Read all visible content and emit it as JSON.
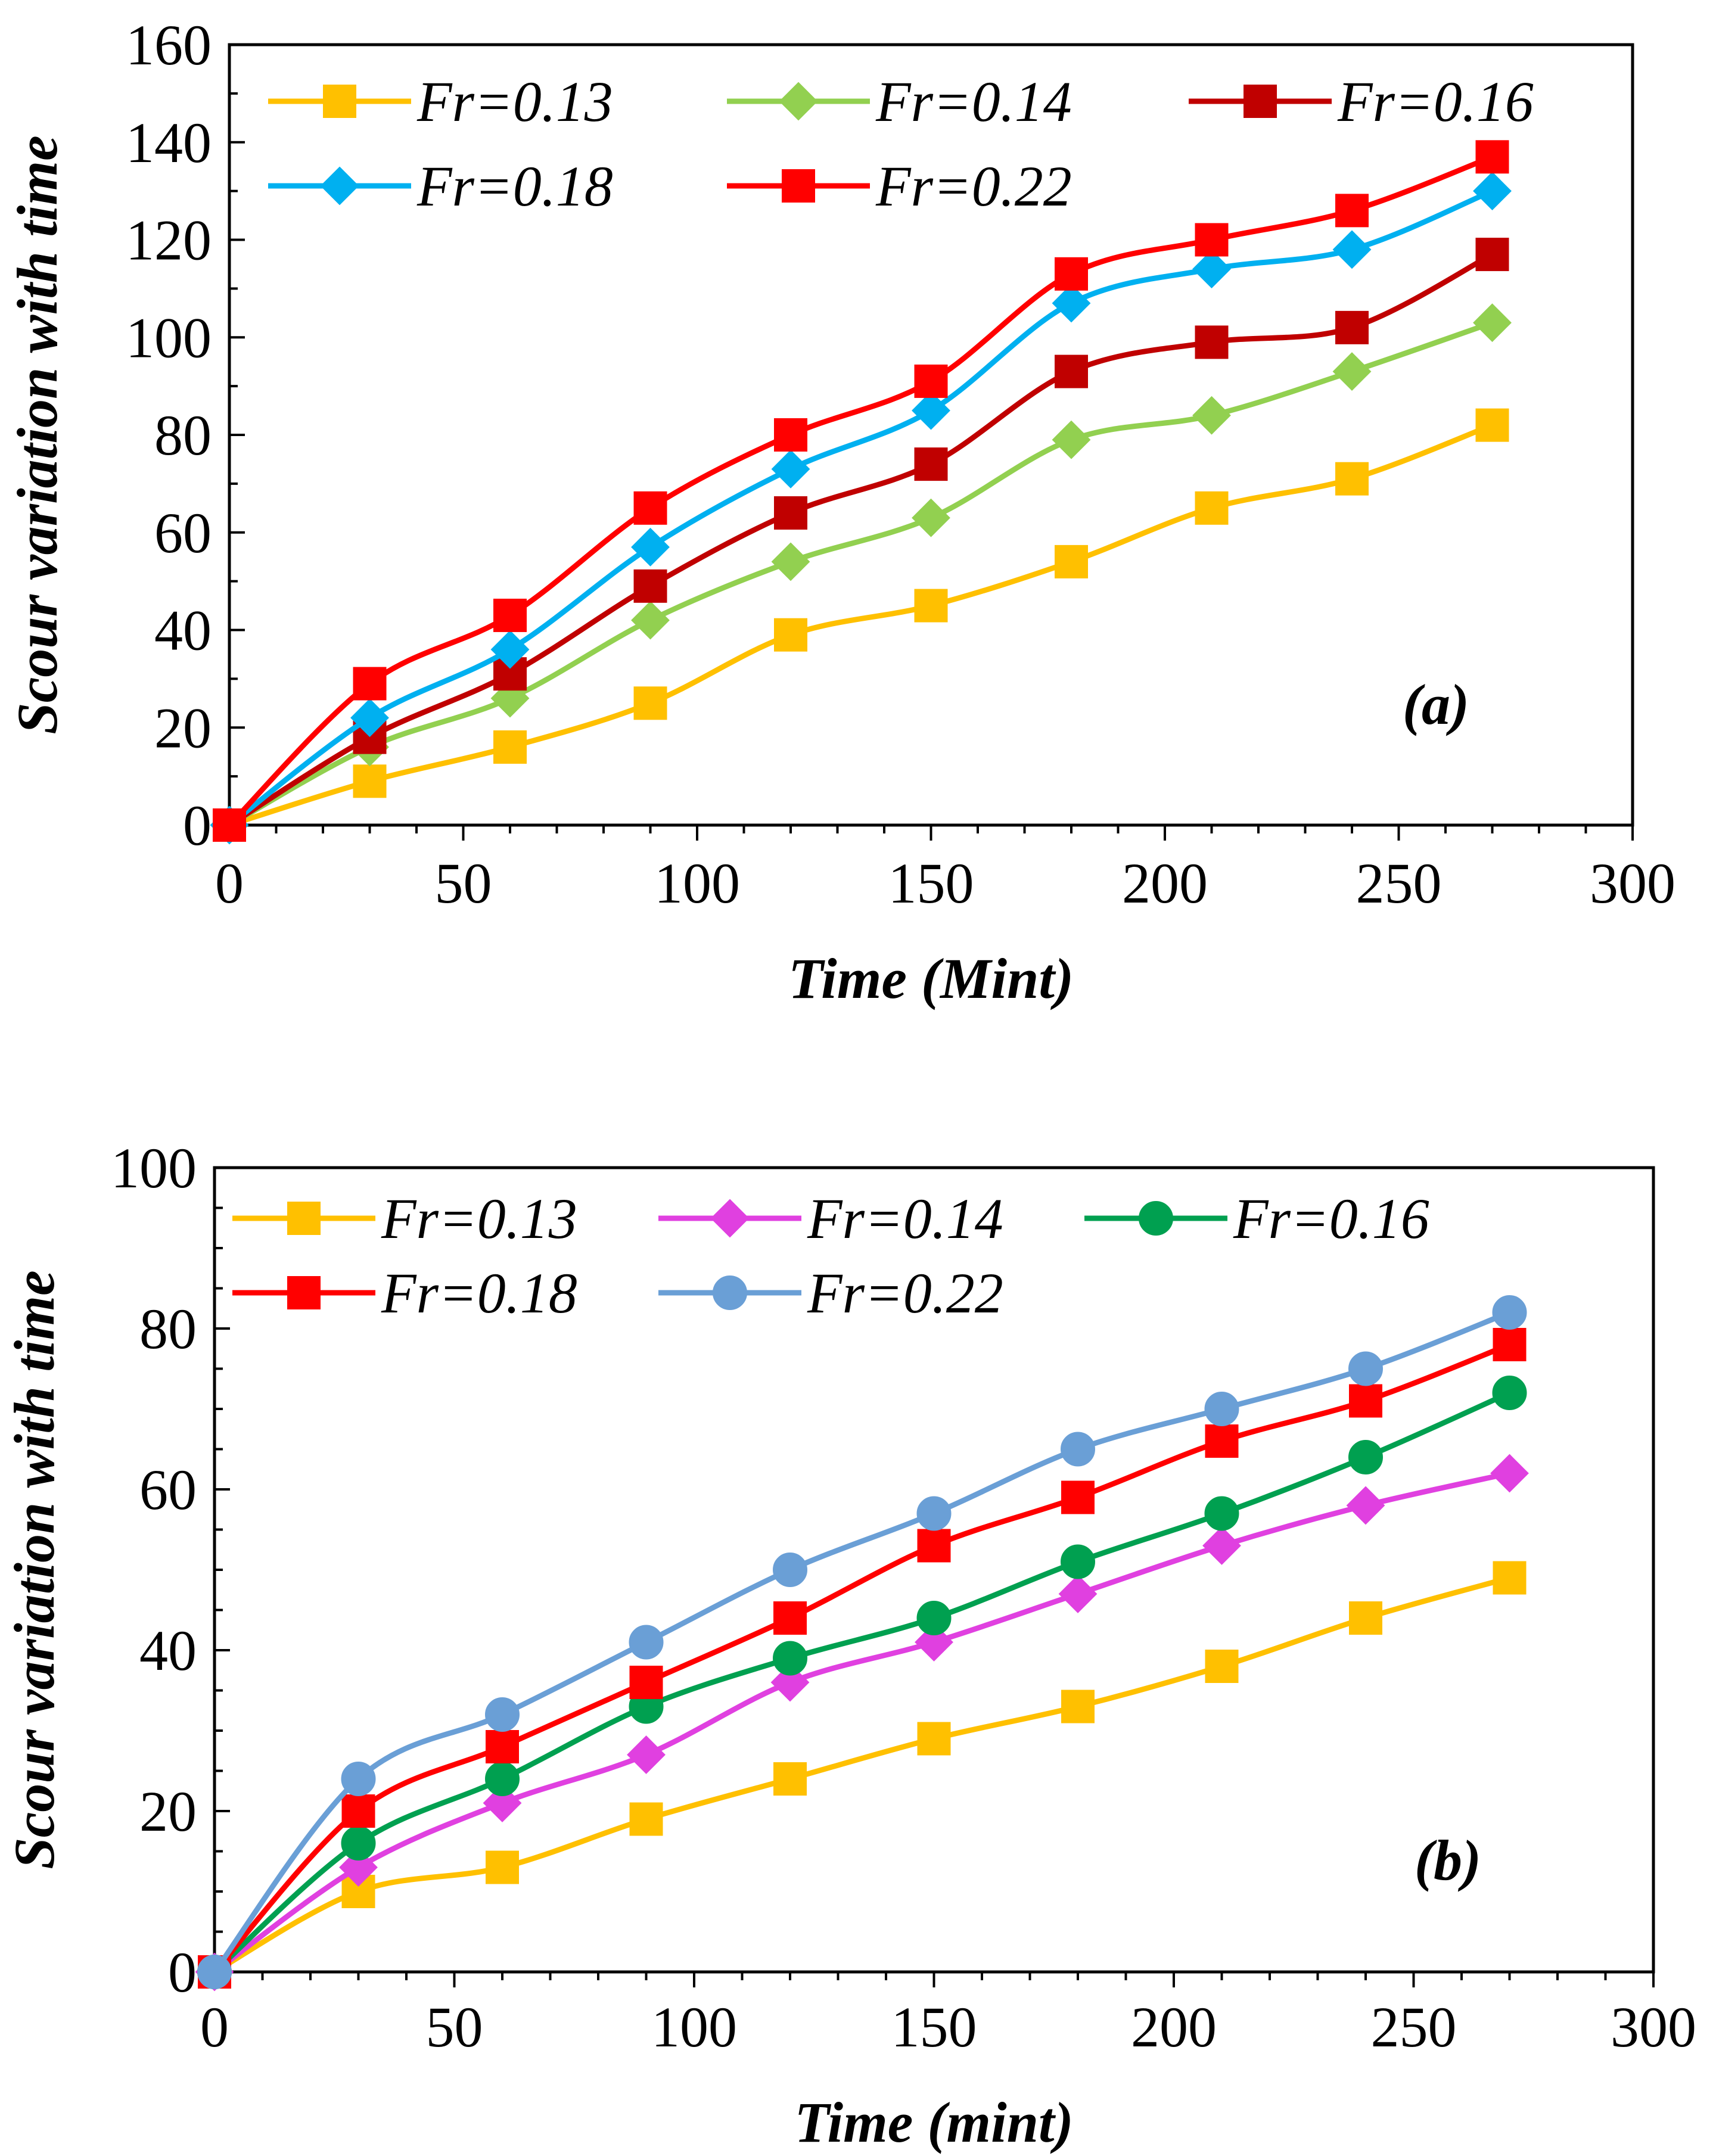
{
  "chart_data": [
    {
      "type": "line",
      "panel_label": "(a)",
      "xlabel": "Time (Mint)",
      "ylabel": "Scour variation with time",
      "xlim": [
        0,
        300
      ],
      "ylim": [
        0,
        160
      ],
      "x_ticks": [
        0,
        50,
        100,
        150,
        200,
        250,
        300
      ],
      "y_ticks": [
        0,
        20,
        40,
        60,
        80,
        100,
        120,
        140,
        160
      ],
      "x": [
        0,
        30,
        60,
        90,
        120,
        150,
        180,
        210,
        240,
        270
      ],
      "series": [
        {
          "name": "Fr=0.13",
          "color": "#FFC000",
          "marker": "square",
          "values": [
            0,
            9,
            16,
            25,
            39,
            45,
            54,
            65,
            71,
            82
          ]
        },
        {
          "name": "Fr=0.14",
          "color": "#92D050",
          "marker": "diamond",
          "values": [
            0,
            16,
            26,
            42,
            54,
            63,
            79,
            84,
            93,
            103
          ]
        },
        {
          "name": "Fr=0.16",
          "color": "#C00000",
          "marker": "square",
          "values": [
            0,
            18,
            31,
            49,
            64,
            74,
            93,
            99,
            102,
            117
          ]
        },
        {
          "name": "Fr=0.18",
          "color": "#00B0F0",
          "marker": "diamond",
          "values": [
            0,
            22,
            36,
            57,
            73,
            85,
            107,
            114,
            118,
            130
          ]
        },
        {
          "name": "Fr=0.22",
          "color": "#FF0000",
          "marker": "square",
          "values": [
            0,
            29,
            43,
            65,
            80,
            91,
            113,
            120,
            126,
            137
          ]
        }
      ]
    },
    {
      "type": "line",
      "panel_label": "(b)",
      "xlabel": "Time (mint)",
      "ylabel": "Scour variation with time",
      "xlim": [
        0,
        300
      ],
      "ylim": [
        0,
        100
      ],
      "x_ticks": [
        0,
        50,
        100,
        150,
        200,
        250,
        300
      ],
      "y_ticks": [
        0,
        20,
        40,
        60,
        80,
        100
      ],
      "x": [
        0,
        30,
        60,
        90,
        120,
        150,
        180,
        210,
        240,
        270
      ],
      "series": [
        {
          "name": "Fr=0.13",
          "color": "#FFC000",
          "marker": "square",
          "values": [
            0,
            10,
            13,
            19,
            24,
            29,
            33,
            38,
            44,
            49
          ]
        },
        {
          "name": "Fr=0.14",
          "color": "#E040E0",
          "marker": "diamond",
          "values": [
            0,
            13,
            21,
            27,
            36,
            41,
            47,
            53,
            58,
            62
          ]
        },
        {
          "name": "Fr=0.16",
          "color": "#00A050",
          "marker": "circle",
          "values": [
            0,
            16,
            24,
            33,
            39,
            44,
            51,
            57,
            64,
            72
          ]
        },
        {
          "name": "Fr=0.18",
          "color": "#FF0000",
          "marker": "square",
          "values": [
            0,
            20,
            28,
            36,
            44,
            53,
            59,
            66,
            71,
            78
          ]
        },
        {
          "name": "Fr=0.22",
          "color": "#6A9FD6",
          "marker": "circle",
          "values": [
            0,
            24,
            32,
            41,
            50,
            57,
            65,
            70,
            75,
            82
          ]
        }
      ]
    }
  ]
}
